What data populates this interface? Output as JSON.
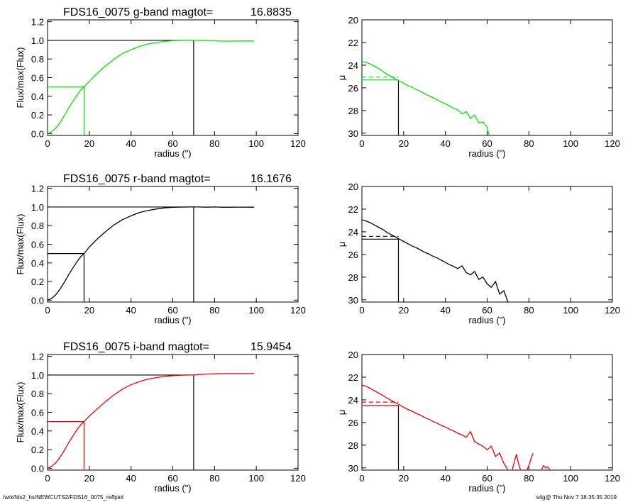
{
  "footer": {
    "left": "/wrk/fds2_hs/NEWCUTS2/FDS16_0075_reffplot",
    "right": "s4g@  Thu Nov  7 18:35:35 2019"
  },
  "chart_data": [
    {
      "id": "g-growth",
      "type": "line",
      "band": "g",
      "color": "#00e600",
      "title_text": "FDS16_0075 g-band  magtot=",
      "title_value": "16.8835",
      "xlabel": "radius (\")",
      "ylabel": "Flux/max(Flux)",
      "xlim": [
        0,
        120
      ],
      "ylim": [
        -0.02,
        1.22
      ],
      "xticks": [
        "0",
        "20",
        "40",
        "60",
        "80",
        "100",
        "120"
      ],
      "xtick_values": [
        0,
        20,
        40,
        60,
        80,
        100,
        120
      ],
      "yticks": [
        "0.0",
        "0.2",
        "0.4",
        "0.6",
        "0.8",
        "1.0",
        "1.2"
      ],
      "ytick_values": [
        0,
        0.2,
        0.4,
        0.6,
        0.8,
        1.0,
        1.2
      ],
      "series": [
        {
          "x": [
            0,
            2,
            4,
            6,
            8,
            10,
            12,
            14,
            16,
            17.5,
            20,
            24,
            28,
            32,
            36,
            40,
            44,
            48,
            52,
            56,
            60,
            64,
            68,
            70,
            72,
            76,
            80,
            84,
            88,
            92,
            96,
            99
          ],
          "y": [
            0,
            0.02,
            0.06,
            0.12,
            0.19,
            0.27,
            0.34,
            0.41,
            0.47,
            0.5,
            0.56,
            0.65,
            0.73,
            0.8,
            0.86,
            0.9,
            0.935,
            0.96,
            0.975,
            0.988,
            0.996,
            1.0,
            1.0,
            1.0,
            1.0,
            0.998,
            0.995,
            0.992,
            0.992,
            0.993,
            0.993,
            0.993
          ]
        }
      ],
      "markers": {
        "r_half": 17.5,
        "half_level": 0.5,
        "r_total": 70,
        "total_level": 1.0
      }
    },
    {
      "id": "g-profile",
      "type": "line",
      "band": "g",
      "color": "#00e600",
      "xlabel": "radius (\")",
      "ylabel": "μ",
      "xlim": [
        0,
        120
      ],
      "ylim": [
        30.2,
        20
      ],
      "y_inverted": true,
      "xticks": [
        "0",
        "20",
        "40",
        "60",
        "80",
        "100",
        "120"
      ],
      "xtick_values": [
        0,
        20,
        40,
        60,
        80,
        100,
        120
      ],
      "yticks": [
        "20",
        "22",
        "24",
        "26",
        "28",
        "30"
      ],
      "ytick_values": [
        20,
        22,
        24,
        26,
        28,
        30
      ],
      "series": [
        {
          "x": [
            0,
            2,
            4,
            6,
            8,
            10,
            12,
            14,
            16,
            18,
            20,
            22,
            24,
            26,
            28,
            30,
            32,
            34,
            36,
            38,
            40,
            42,
            44,
            46,
            48,
            50,
            52,
            54,
            56,
            58,
            60,
            61
          ],
          "y": [
            23.7,
            23.75,
            23.9,
            24.1,
            24.3,
            24.55,
            24.8,
            25.0,
            25.2,
            25.4,
            25.6,
            25.8,
            25.95,
            26.15,
            26.3,
            26.5,
            26.7,
            26.85,
            27.05,
            27.25,
            27.4,
            27.6,
            27.8,
            27.95,
            28.3,
            28.1,
            28.7,
            28.4,
            29.1,
            29.0,
            29.5,
            30.2
          ]
        }
      ],
      "markers": {
        "r_half": 17.5,
        "mu_solid": 25.3,
        "mu_dashed": 25.05
      }
    },
    {
      "id": "r-growth",
      "type": "line",
      "band": "r",
      "color": "#000000",
      "title_text": "FDS16_0075 r-band  magtot=",
      "title_value": "16.1676",
      "xlabel": "radius (\")",
      "ylabel": "Flux/max(Flux)",
      "xlim": [
        0,
        120
      ],
      "ylim": [
        -0.02,
        1.22
      ],
      "xticks": [
        "0",
        "20",
        "40",
        "60",
        "80",
        "100",
        "120"
      ],
      "xtick_values": [
        0,
        20,
        40,
        60,
        80,
        100,
        120
      ],
      "yticks": [
        "0.0",
        "0.2",
        "0.4",
        "0.6",
        "0.8",
        "1.0",
        "1.2"
      ],
      "ytick_values": [
        0,
        0.2,
        0.4,
        0.6,
        0.8,
        1.0,
        1.2
      ],
      "series": [
        {
          "x": [
            0,
            2,
            4,
            6,
            8,
            10,
            12,
            14,
            16,
            17.5,
            20,
            24,
            28,
            32,
            36,
            40,
            44,
            48,
            52,
            56,
            60,
            64,
            68,
            70,
            72,
            76,
            80,
            84,
            88,
            92,
            96,
            99
          ],
          "y": [
            0,
            0.02,
            0.06,
            0.12,
            0.19,
            0.27,
            0.34,
            0.41,
            0.47,
            0.5,
            0.57,
            0.66,
            0.74,
            0.81,
            0.865,
            0.905,
            0.94,
            0.962,
            0.978,
            0.99,
            0.996,
            0.999,
            1.0,
            1.0,
            1.0,
            0.998,
            1.0,
            0.997,
            0.998,
            0.999,
            0.998,
            0.998
          ]
        }
      ],
      "markers": {
        "r_half": 17.5,
        "half_level": 0.5,
        "r_total": 70,
        "total_level": 1.0
      }
    },
    {
      "id": "r-profile",
      "type": "line",
      "band": "r",
      "color": "#000000",
      "xlabel": "radius (\")",
      "ylabel": "μ",
      "xlim": [
        0,
        120
      ],
      "ylim": [
        30.2,
        20
      ],
      "y_inverted": true,
      "xticks": [
        "0",
        "20",
        "40",
        "60",
        "80",
        "100",
        "120"
      ],
      "xtick_values": [
        0,
        20,
        40,
        60,
        80,
        100,
        120
      ],
      "yticks": [
        "20",
        "22",
        "24",
        "26",
        "28",
        "30"
      ],
      "ytick_values": [
        20,
        22,
        24,
        26,
        28,
        30
      ],
      "series": [
        {
          "x": [
            0,
            2,
            4,
            6,
            8,
            10,
            12,
            14,
            16,
            18,
            20,
            22,
            24,
            26,
            28,
            30,
            32,
            34,
            36,
            38,
            40,
            42,
            44,
            46,
            48,
            50,
            52,
            54,
            56,
            58,
            60,
            62,
            64,
            66,
            68,
            70
          ],
          "y": [
            22.95,
            23.05,
            23.2,
            23.4,
            23.6,
            23.8,
            24.05,
            24.25,
            24.45,
            24.65,
            24.85,
            25.05,
            25.25,
            25.4,
            25.6,
            25.8,
            25.95,
            26.15,
            26.3,
            26.5,
            26.7,
            26.9,
            27.05,
            27.25,
            27.0,
            27.6,
            27.8,
            27.5,
            28.2,
            28.0,
            28.6,
            28.9,
            28.4,
            29.5,
            29.2,
            30.2
          ]
        }
      ],
      "markers": {
        "r_half": 17.5,
        "mu_solid": 24.65,
        "mu_dashed": 24.4
      }
    },
    {
      "id": "i-growth",
      "type": "line",
      "band": "i",
      "color": "#ee0000",
      "title_text": "FDS16_0075 i-band  magtot=",
      "title_value": "15.9454",
      "xlabel": "radius (\")",
      "ylabel": "Flux/max(Flux)",
      "xlim": [
        0,
        120
      ],
      "ylim": [
        -0.02,
        1.22
      ],
      "xticks": [
        "0",
        "20",
        "40",
        "60",
        "80",
        "100",
        "120"
      ],
      "xtick_values": [
        0,
        20,
        40,
        60,
        80,
        100,
        120
      ],
      "yticks": [
        "0.0",
        "0.2",
        "0.4",
        "0.6",
        "0.8",
        "1.0",
        "1.2"
      ],
      "ytick_values": [
        0,
        0.2,
        0.4,
        0.6,
        0.8,
        1.0,
        1.2
      ],
      "series": [
        {
          "x": [
            0,
            2,
            4,
            6,
            8,
            10,
            12,
            14,
            16,
            17.5,
            20,
            24,
            28,
            32,
            36,
            40,
            44,
            48,
            52,
            56,
            60,
            64,
            68,
            70,
            72,
            76,
            80,
            84,
            88,
            92,
            96,
            99
          ],
          "y": [
            0,
            0.02,
            0.06,
            0.12,
            0.19,
            0.27,
            0.34,
            0.41,
            0.47,
            0.5,
            0.56,
            0.64,
            0.72,
            0.79,
            0.85,
            0.895,
            0.93,
            0.955,
            0.972,
            0.985,
            0.993,
            0.998,
            1.0,
            1.0,
            1.005,
            1.01,
            1.012,
            1.015,
            1.015,
            1.015,
            1.015,
            1.015
          ]
        }
      ],
      "markers": {
        "r_half": 17.5,
        "half_level": 0.5,
        "r_total": 70,
        "total_level": 1.0
      }
    },
    {
      "id": "i-profile",
      "type": "line",
      "band": "i",
      "color": "#ee0000",
      "xlabel": "radius (\")",
      "ylabel": "μ",
      "xlim": [
        0,
        120
      ],
      "ylim": [
        30.2,
        20
      ],
      "y_inverted": true,
      "xticks": [
        "0",
        "20",
        "40",
        "60",
        "80",
        "100",
        "120"
      ],
      "xtick_values": [
        0,
        20,
        40,
        60,
        80,
        100,
        120
      ],
      "yticks": [
        "20",
        "22",
        "24",
        "26",
        "28",
        "30"
      ],
      "ytick_values": [
        20,
        22,
        24,
        26,
        28,
        30
      ],
      "series": [
        {
          "x": [
            0,
            2,
            4,
            6,
            8,
            10,
            12,
            14,
            16,
            18,
            20,
            22,
            24,
            26,
            28,
            30,
            32,
            34,
            36,
            38,
            40,
            42,
            44,
            46,
            48,
            50,
            52,
            54,
            56,
            58,
            60,
            62,
            64,
            66,
            68,
            70
          ],
          "y": [
            22.7,
            22.8,
            23.0,
            23.2,
            23.4,
            23.6,
            23.85,
            24.05,
            24.25,
            24.45,
            24.65,
            24.85,
            25.0,
            25.2,
            25.35,
            25.55,
            25.7,
            25.9,
            26.05,
            26.25,
            26.4,
            26.6,
            26.75,
            26.95,
            27.1,
            27.3,
            26.8,
            27.7,
            27.9,
            28.1,
            28.4,
            28.1,
            29.0,
            28.7,
            29.6,
            30.2
          ]
        },
        {
          "x": [
            72,
            73,
            74,
            75,
            76
          ],
          "y": [
            30.2,
            29.5,
            28.8,
            29.6,
            30.2
          ]
        },
        {
          "x": [
            79,
            80,
            81,
            82
          ],
          "y": [
            30.2,
            29.8,
            29.2,
            28.7
          ]
        },
        {
          "x": [
            86,
            87,
            88,
            89,
            90
          ],
          "y": [
            30.2,
            29.8,
            30.0,
            29.9,
            30.2
          ]
        }
      ],
      "markers": {
        "r_half": 17.5,
        "mu_solid": 24.5,
        "mu_dashed": 24.2
      }
    }
  ]
}
